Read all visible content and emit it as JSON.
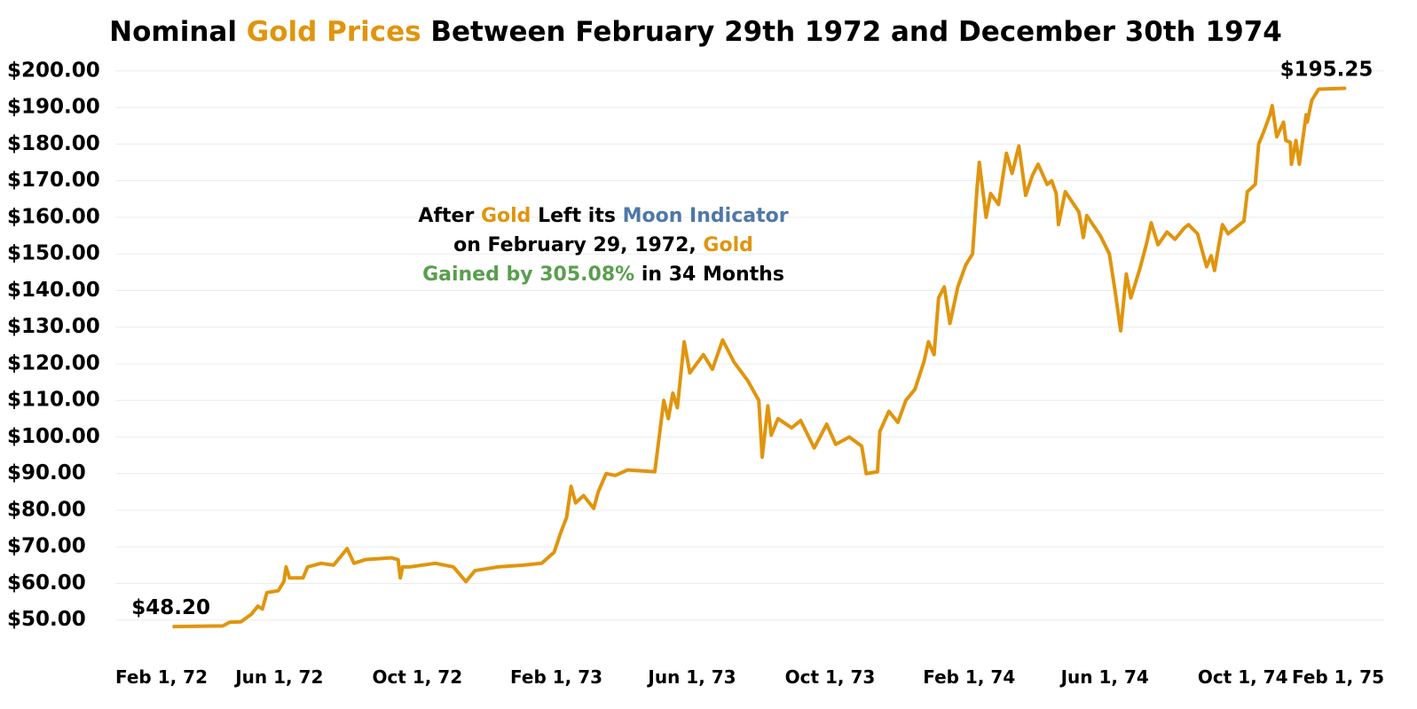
{
  "chart_data": {
    "type": "line",
    "title": [
      {
        "text": "Nominal ",
        "color": "#000000"
      },
      {
        "text": "Gold Prices",
        "color": "#e0950e"
      },
      {
        "text": " Between February 29th 1972 and December 30th 1974",
        "color": "#000000"
      }
    ],
    "annotation": [
      [
        {
          "text": "After ",
          "color": "#000000"
        },
        {
          "text": "Gold",
          "color": "#e0950e"
        },
        {
          "text": " Left its ",
          "color": "#000000"
        },
        {
          "text": "Moon Indicator",
          "color": "#4f78a8"
        }
      ],
      [
        {
          "text": "on February 29, 1972, ",
          "color": "#000000"
        },
        {
          "text": "Gold",
          "color": "#e0950e"
        }
      ],
      [
        {
          "text": "Gained by 305.08%",
          "color": "#5a9e4f"
        },
        {
          "text": " in 34 Months",
          "color": "#000000"
        }
      ]
    ],
    "color": "#e0950e",
    "grid": true,
    "xlim": [
      "1972-01-08",
      "1975-02-03"
    ],
    "xticks": [
      {
        "value": "1972-02-01",
        "label": "Feb 1, 72"
      },
      {
        "value": "1972-06-01",
        "label": "Jun 1, 72"
      },
      {
        "value": "1972-10-01",
        "label": "Oct 1, 72"
      },
      {
        "value": "1973-02-01",
        "label": "Feb 1, 73"
      },
      {
        "value": "1973-06-01",
        "label": "Jun 1, 73"
      },
      {
        "value": "1973-10-01",
        "label": "Oct 1, 73"
      },
      {
        "value": "1974-02-01",
        "label": "Feb 1, 74"
      },
      {
        "value": "1974-06-01",
        "label": "Jun 1, 74"
      },
      {
        "value": "1974-10-01",
        "label": "Oct 1, 74"
      },
      {
        "value": "1975-02-01",
        "label": "Feb 1, 75"
      }
    ],
    "ylim": [
      40,
      202.4
    ],
    "yticks": [
      {
        "value": 50,
        "label": "$50.00"
      },
      {
        "value": 60,
        "label": "$60.00"
      },
      {
        "value": 70,
        "label": "$70.00"
      },
      {
        "value": 80,
        "label": "$80.00"
      },
      {
        "value": 90,
        "label": "$90.00"
      },
      {
        "value": 100,
        "label": "$100.00"
      },
      {
        "value": 110,
        "label": "$110.00"
      },
      {
        "value": 120,
        "label": "$120.00"
      },
      {
        "value": 130,
        "label": "$130.00"
      },
      {
        "value": 140,
        "label": "$140.00"
      },
      {
        "value": 150,
        "label": "$150.00"
      },
      {
        "value": 160,
        "label": "$160.00"
      },
      {
        "value": 170,
        "label": "$170.00"
      },
      {
        "value": 180,
        "label": "$180.00"
      },
      {
        "value": 190,
        "label": "$190.00"
      },
      {
        "value": 200,
        "label": "$200.00"
      }
    ],
    "x": [
      "1972-02-29",
      "1972-03-20",
      "1972-04-12",
      "1972-04-18",
      "1972-04-28",
      "1972-05-07",
      "1972-05-13",
      "1972-05-17",
      "1972-05-21",
      "1972-05-31",
      "1972-06-05",
      "1972-06-07",
      "1972-06-10",
      "1972-06-22",
      "1972-06-26",
      "1972-07-08",
      "1972-07-19",
      "1972-07-31",
      "1972-08-06",
      "1972-08-16",
      "1972-09-08",
      "1972-09-14",
      "1972-09-16",
      "1972-09-18",
      "1972-09-24",
      "1972-10-17",
      "1972-11-02",
      "1972-11-13",
      "1972-11-21",
      "1972-12-11",
      "1973-01-03",
      "1973-01-19",
      "1973-01-30",
      "1973-02-05",
      "1973-02-10",
      "1973-02-14",
      "1973-02-18",
      "1973-02-25",
      "1973-03-06",
      "1973-03-10",
      "1973-03-17",
      "1973-03-25",
      "1973-04-05",
      "1973-04-29",
      "1973-05-07",
      "1973-05-11",
      "1973-05-15",
      "1973-05-19",
      "1973-05-25",
      "1973-05-30",
      "1973-06-11",
      "1973-06-19",
      "1973-06-28",
      "1973-07-08",
      "1973-07-20",
      "1973-07-30",
      "1973-08-02",
      "1973-08-07",
      "1973-08-10",
      "1973-08-16",
      "1973-08-28",
      "1973-09-05",
      "1973-09-17",
      "1973-09-28",
      "1973-10-06",
      "1973-10-18",
      "1973-10-29",
      "1973-11-02",
      "1973-11-12",
      "1973-11-14",
      "1973-11-22",
      "1973-11-30",
      "1973-12-07",
      "1973-12-15",
      "1973-12-23",
      "1973-12-27",
      "1974-01-01",
      "1974-01-05",
      "1974-01-10",
      "1974-01-15",
      "1974-01-22",
      "1974-01-29",
      "1974-02-04",
      "1974-02-08",
      "1974-02-10",
      "1974-02-16",
      "1974-02-20",
      "1974-02-27",
      "1974-03-06",
      "1974-03-11",
      "1974-03-17",
      "1974-03-23",
      "1974-03-29",
      "1974-04-03",
      "1974-04-11",
      "1974-04-15",
      "1974-04-19",
      "1974-04-21",
      "1974-04-27",
      "1974-05-09",
      "1974-05-13",
      "1974-05-16",
      "1974-05-28",
      "1974-06-05",
      "1974-06-10",
      "1974-06-15",
      "1974-06-20",
      "1974-06-24",
      "1974-07-02",
      "1974-07-08",
      "1974-07-12",
      "1974-07-18",
      "1974-07-26",
      "1974-08-02",
      "1974-08-10",
      "1974-08-14",
      "1974-08-22",
      "1974-08-26",
      "1974-08-30",
      "1974-09-03",
      "1974-09-06",
      "1974-09-09",
      "1974-09-13",
      "1974-09-18",
      "1974-10-02",
      "1974-10-05",
      "1974-10-12",
      "1974-10-15",
      "1974-10-19",
      "1974-10-25",
      "1974-10-27",
      "1974-10-31",
      "1974-11-06",
      "1974-11-08",
      "1974-11-12",
      "1974-11-13",
      "1974-11-17",
      "1974-11-20",
      "1974-11-26",
      "1974-11-27",
      "1974-12-01",
      "1974-12-07",
      "1974-12-30"
    ],
    "values": [
      48.2,
      48.3,
      48.4,
      49.4,
      49.5,
      51.5,
      53.8,
      53.0,
      57.5,
      58.0,
      60.5,
      64.5,
      61.5,
      61.5,
      64.5,
      65.5,
      65.0,
      69.5,
      65.5,
      66.5,
      67.0,
      66.5,
      61.5,
      64.5,
      64.5,
      65.5,
      64.5,
      60.5,
      63.5,
      64.5,
      65.0,
      65.5,
      68.5,
      74.0,
      78.0,
      86.5,
      82.0,
      84.0,
      80.5,
      85.0,
      90.0,
      89.5,
      91.0,
      90.5,
      110.0,
      105.0,
      112.0,
      108.0,
      126.0,
      117.5,
      122.5,
      118.5,
      126.5,
      120.5,
      115.5,
      110.0,
      94.5,
      108.5,
      100.5,
      105.0,
      102.5,
      104.5,
      97.0,
      103.5,
      98.0,
      100.0,
      97.5,
      90.0,
      90.5,
      101.5,
      107.0,
      104.0,
      110.0,
      113.0,
      120.5,
      126.0,
      122.5,
      138.0,
      141.0,
      131.0,
      141.0,
      147.0,
      150.0,
      168.0,
      175.0,
      160.0,
      166.5,
      163.5,
      177.5,
      172.0,
      179.5,
      166.0,
      171.5,
      174.5,
      169.0,
      170.0,
      166.5,
      158.0,
      167.0,
      161.5,
      154.5,
      160.5,
      155.0,
      150.0,
      140.0,
      129.0,
      144.5,
      138.0,
      146.0,
      153.0,
      158.5,
      152.5,
      156.0,
      154.0,
      157.0,
      158.0,
      155.5,
      151.0,
      146.5,
      149.5,
      145.5,
      151.0,
      158.0,
      155.5,
      159.0,
      167.0,
      169.0,
      180.0,
      183.0,
      188.0,
      190.5,
      182.0,
      186.0,
      181.0,
      180.5,
      174.5,
      181.0,
      174.5,
      188.0,
      186.0,
      192.0,
      195.0,
      195.25
    ],
    "value_labels": [
      "$48.20",
      null,
      null,
      null,
      null,
      null,
      null,
      null,
      null,
      null,
      null,
      null,
      null,
      null,
      null,
      null,
      null,
      null,
      null,
      null,
      null,
      null,
      null,
      null,
      null,
      null,
      null,
      null,
      null,
      null,
      null,
      null,
      null,
      null,
      null,
      null,
      null,
      null,
      null,
      null,
      null,
      null,
      null,
      null,
      null,
      null,
      null,
      null,
      null,
      null,
      null,
      null,
      null,
      null,
      null,
      null,
      null,
      null,
      null,
      null,
      null,
      null,
      null,
      null,
      null,
      null,
      null,
      null,
      null,
      null,
      null,
      null,
      null,
      null,
      null,
      null,
      null,
      null,
      null,
      null,
      null,
      null,
      null,
      null,
      null,
      null,
      null,
      null,
      null,
      null,
      null,
      null,
      null,
      null,
      null,
      null,
      null,
      null,
      null,
      null,
      null,
      null,
      null,
      null,
      null,
      null,
      null,
      null,
      null,
      null,
      null,
      null,
      null,
      null,
      null,
      null,
      null,
      null,
      null,
      null,
      null,
      null,
      null,
      null,
      null,
      null,
      null,
      null,
      null,
      null,
      null,
      null,
      null,
      null,
      null,
      null,
      null,
      null,
      null,
      null,
      null,
      null,
      "$195.25"
    ]
  }
}
